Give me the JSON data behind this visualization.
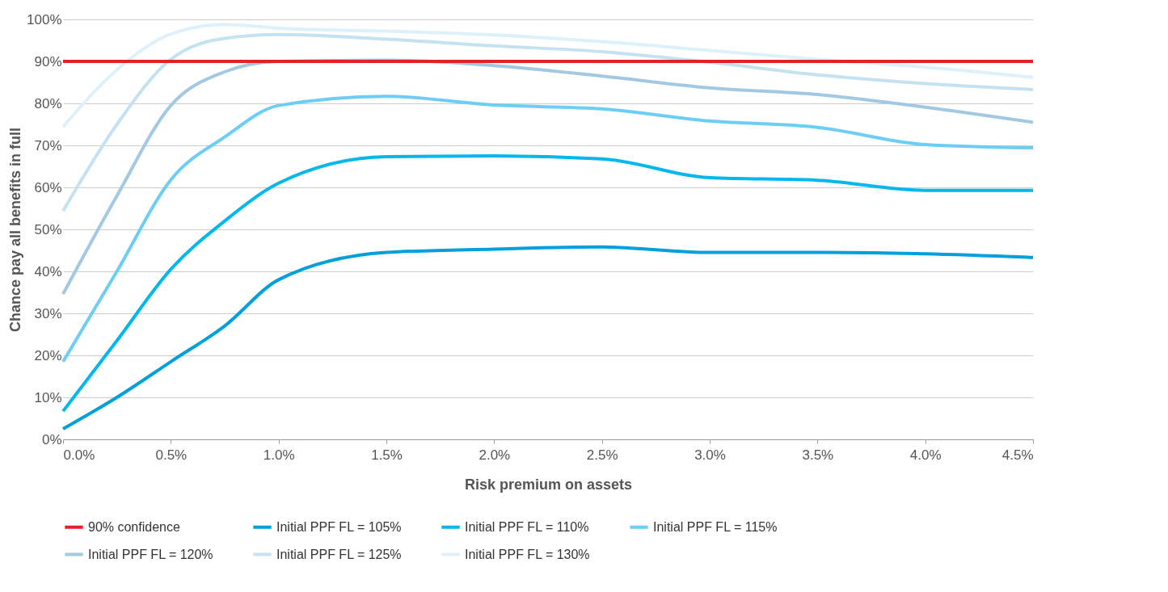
{
  "chart_data": {
    "type": "line",
    "xlabel": "Risk premium on assets",
    "ylabel": "Chance pay all benefits in full",
    "x": [
      0,
      0.25,
      0.5,
      0.75,
      1,
      1.5,
      2,
      2.5,
      3,
      3.5,
      4,
      4.5
    ],
    "xlim": [
      0,
      4.5
    ],
    "xticks": [
      {
        "value": 0,
        "label": "0.0%"
      },
      {
        "value": 0.5,
        "label": "0.5%"
      },
      {
        "value": 1,
        "label": "1.0%"
      },
      {
        "value": 1.5,
        "label": "1.5%"
      },
      {
        "value": 2,
        "label": "2.0%"
      },
      {
        "value": 2.5,
        "label": "2.5%"
      },
      {
        "value": 3,
        "label": "3.0%"
      },
      {
        "value": 3.5,
        "label": "3.5%"
      },
      {
        "value": 4,
        "label": "4.0%"
      },
      {
        "value": 4.5,
        "label": "4.5%"
      }
    ],
    "ylim": [
      0,
      100
    ],
    "yticks": [
      {
        "value": 0,
        "label": "0%"
      },
      {
        "value": 10,
        "label": "10%"
      },
      {
        "value": 20,
        "label": "20%"
      },
      {
        "value": 30,
        "label": "30%"
      },
      {
        "value": 40,
        "label": "40%"
      },
      {
        "value": 50,
        "label": "50%"
      },
      {
        "value": 60,
        "label": "60%"
      },
      {
        "value": 70,
        "label": "70%"
      },
      {
        "value": 80,
        "label": "80%"
      },
      {
        "value": 90,
        "label": "90%"
      },
      {
        "value": 100,
        "label": "100%"
      }
    ],
    "grid": "y",
    "legend": "bottom",
    "marker": "none",
    "line_style": "solid",
    "series": [
      {
        "name": "90% confidence",
        "color": "#e4202a",
        "values": [
          90,
          90,
          90,
          90,
          90,
          90,
          90,
          90,
          90,
          90,
          90,
          90
        ]
      },
      {
        "name": "Initial PPF FL = 105%",
        "color": "#00a0dd",
        "values": [
          2.5,
          10,
          18.5,
          27,
          38,
          44.5,
          45.3,
          45.8,
          44.5,
          44.5,
          44.2,
          43.3
        ]
      },
      {
        "name": "Initial PPF FL = 110%",
        "color": "#00b7ee",
        "values": [
          6.7,
          23.5,
          40.5,
          52,
          61,
          67.3,
          67.5,
          66.8,
          62.3,
          61.7,
          59.3,
          59.3
        ]
      },
      {
        "name": "Initial PPF FL = 115%",
        "color": "#6ccef5",
        "values": [
          18.5,
          40,
          61.8,
          72,
          79.5,
          81.7,
          79.6,
          78.7,
          75.8,
          74.3,
          70.2,
          69.4
        ]
      },
      {
        "name": "Initial PPF FL = 120%",
        "color": "#a3c9e2",
        "values": [
          34.6,
          58,
          79.5,
          87.5,
          90,
          90.3,
          89,
          86.5,
          83.7,
          82.1,
          79.1,
          75.5
        ]
      },
      {
        "name": "Initial PPF FL = 125%",
        "color": "#c4e2f2",
        "values": [
          54.4,
          75,
          90.5,
          95.5,
          96.4,
          95.3,
          93.7,
          92.3,
          89.8,
          86.8,
          84.7,
          83.3
        ]
      },
      {
        "name": "Initial PPF FL = 130%",
        "color": "#ddf1fb",
        "values": [
          74.4,
          88,
          96.5,
          98.8,
          97.9,
          97.2,
          96.3,
          94.7,
          92.6,
          90.5,
          88.6,
          86.2
        ]
      }
    ]
  }
}
